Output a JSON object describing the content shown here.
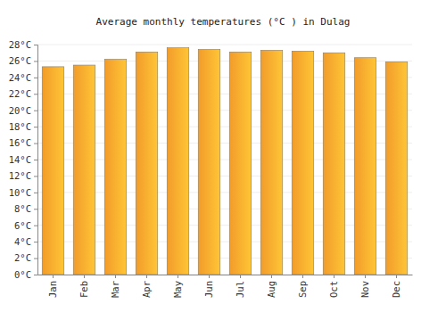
{
  "chart_data": {
    "type": "bar",
    "title": "Average monthly temperatures (°C ) in Dulag",
    "categories": [
      "Jan",
      "Feb",
      "Mar",
      "Apr",
      "May",
      "Jun",
      "Jul",
      "Aug",
      "Sep",
      "Oct",
      "Nov",
      "Dec"
    ],
    "values": [
      25.3,
      25.5,
      26.2,
      27.1,
      27.6,
      27.4,
      27.1,
      27.3,
      27.2,
      27.0,
      26.4,
      25.9
    ],
    "color": "#ffa52c",
    "ylim": [
      0,
      28
    ],
    "yticks": [
      {
        "value": 0,
        "label": "0°C"
      },
      {
        "value": 2,
        "label": "2°C"
      },
      {
        "value": 4,
        "label": "4°C"
      },
      {
        "value": 6,
        "label": "6°C"
      },
      {
        "value": 8,
        "label": "8°C"
      },
      {
        "value": 10,
        "label": "10°C"
      },
      {
        "value": 12,
        "label": "12°C"
      },
      {
        "value": 14,
        "label": "14°C"
      },
      {
        "value": 16,
        "label": "16°C"
      },
      {
        "value": 18,
        "label": "18°C"
      },
      {
        "value": 20,
        "label": "20°C"
      },
      {
        "value": 22,
        "label": "22°C"
      },
      {
        "value": 24,
        "label": "24°C"
      },
      {
        "value": 26,
        "label": "26°C"
      },
      {
        "value": 28,
        "label": "28°C"
      }
    ],
    "grid": true
  }
}
